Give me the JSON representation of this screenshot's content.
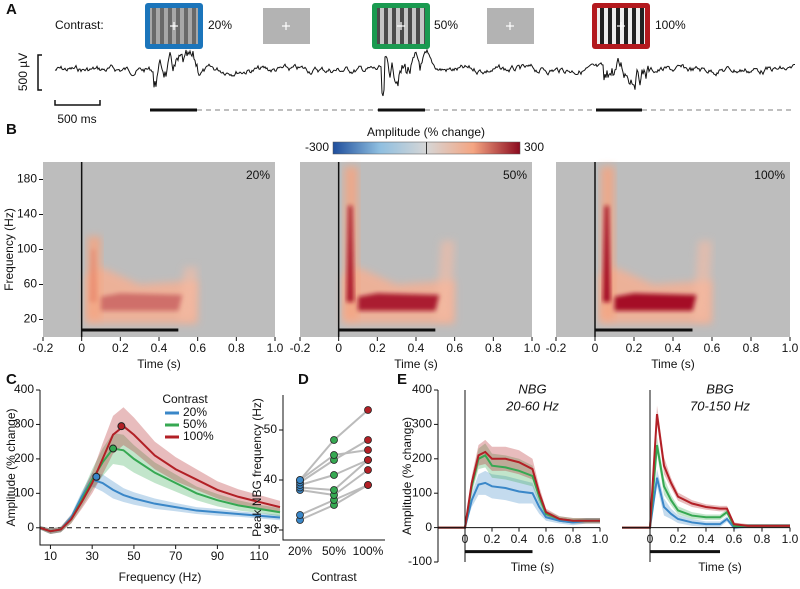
{
  "chart_data": [
    {
      "type": "trace",
      "label": "A",
      "contrast_label": "Contrast:",
      "stimuli": [
        {
          "label": "20%",
          "color": "#1b75bb"
        },
        {
          "label": "50%",
          "color": "#1a9a50"
        },
        {
          "label": "100%",
          "color": "#b3191e"
        }
      ],
      "voltage_scale": "500 µV",
      "time_scale": "500 ms"
    },
    {
      "type": "heatmap",
      "label": "B",
      "colorbar": {
        "title": "Amplitude (% change)",
        "lim": [
          -300,
          300
        ],
        "ticks": [
          -300,
          300
        ]
      },
      "xlabel": "Time (s)",
      "ylabel": "Frequency (Hz)",
      "xlim": [
        -0.2,
        1
      ],
      "xticks": [
        -0.2,
        0,
        0.2,
        0.4,
        0.6,
        0.8,
        {
          "value": 1,
          "label": "1.0"
        }
      ],
      "ylim": [
        0,
        200
      ],
      "yticks": [
        20,
        60,
        100,
        140,
        180
      ],
      "panels": [
        "20%",
        "50%",
        "100%"
      ]
    },
    {
      "type": "line",
      "label": "C",
      "xlabel": "Frequency (Hz)",
      "ylabel": "Amplitude (% change)",
      "xlim": [
        5,
        120
      ],
      "xticks": [
        10,
        30,
        50,
        70,
        90,
        110
      ],
      "ylim": [
        -50,
        400
      ],
      "yticks": [
        0,
        100,
        200,
        300,
        400
      ],
      "legend_title": "Contrast",
      "legend": "upper right",
      "zero_line": "dashed",
      "x": [
        5,
        10,
        15,
        20,
        25,
        30,
        35,
        40,
        45,
        50,
        60,
        70,
        80,
        90,
        100,
        110,
        120
      ],
      "series": [
        {
          "name": "20%",
          "color": "#3a87c8",
          "values": [
            0,
            -10,
            -5,
            30,
            90,
            140,
            130,
            110,
            95,
            85,
            70,
            60,
            50,
            45,
            40,
            35,
            30
          ],
          "error": [
            5,
            8,
            8,
            10,
            15,
            20,
            25,
            25,
            20,
            18,
            15,
            12,
            10,
            10,
            8,
            8,
            8
          ],
          "peak": [
            32,
            148
          ]
        },
        {
          "name": "50%",
          "color": "#36a852",
          "values": [
            0,
            -10,
            -5,
            25,
            80,
            140,
            190,
            230,
            225,
            200,
            160,
            130,
            100,
            80,
            65,
            55,
            45
          ],
          "error": [
            5,
            8,
            8,
            12,
            20,
            30,
            40,
            45,
            45,
            40,
            30,
            25,
            20,
            18,
            15,
            12,
            12
          ],
          "peak": [
            40,
            230
          ]
        },
        {
          "name": "100%",
          "color": "#b22026",
          "values": [
            0,
            -10,
            -5,
            25,
            75,
            130,
            200,
            270,
            295,
            270,
            210,
            170,
            140,
            110,
            90,
            75,
            60
          ],
          "error": [
            5,
            8,
            8,
            12,
            20,
            30,
            45,
            55,
            55,
            50,
            40,
            35,
            30,
            25,
            22,
            20,
            18
          ],
          "peak": [
            44,
            295
          ]
        }
      ]
    },
    {
      "type": "paired",
      "label": "D",
      "xlabel": "Contrast",
      "ylabel": "Peak NBG frequency (Hz)",
      "categories": [
        "20%",
        "50%",
        "100%"
      ],
      "colors": [
        "#3a87c8",
        "#36a852",
        "#b22026"
      ],
      "ylim": [
        28,
        57
      ],
      "yticks": [
        30,
        40,
        50
      ],
      "subjects": [
        [
          32,
          35,
          39
        ],
        [
          33,
          36,
          39
        ],
        [
          38,
          37,
          42
        ],
        [
          38.5,
          38,
          44
        ],
        [
          39,
          41,
          44
        ],
        [
          39.5,
          44,
          48
        ],
        [
          40,
          45,
          46
        ],
        [
          40,
          48,
          54
        ]
      ]
    },
    {
      "type": "timecourse",
      "label": "E",
      "title": "NBG",
      "subtitle": "20-60 Hz",
      "xlabel": "Time (s)",
      "ylabel": "Amplitude (% change)",
      "xlim": [
        -0.2,
        1
      ],
      "xticks": [
        0,
        0.2,
        0.4,
        0.6,
        0.8,
        {
          "value": 1,
          "label": "1.0"
        }
      ],
      "ylim": [
        -100,
        400
      ],
      "yticks": [
        -100,
        0,
        100,
        200,
        300,
        400
      ],
      "x": [
        -0.2,
        -0.1,
        0,
        0.05,
        0.1,
        0.15,
        0.2,
        0.3,
        0.4,
        0.5,
        0.55,
        0.6,
        0.7,
        0.8,
        0.9,
        1.0
      ],
      "series": [
        {
          "name": "20%",
          "color": "#3a87c8",
          "values": [
            0,
            0,
            0,
            80,
            125,
            130,
            120,
            115,
            105,
            100,
            60,
            30,
            20,
            15,
            20,
            20
          ],
          "error": [
            3,
            3,
            3,
            20,
            30,
            35,
            35,
            35,
            35,
            30,
            20,
            10,
            8,
            8,
            8,
            8
          ]
        },
        {
          "name": "50%",
          "color": "#36a852",
          "values": [
            0,
            0,
            0,
            120,
            200,
            210,
            180,
            175,
            165,
            150,
            90,
            40,
            25,
            20,
            20,
            20
          ],
          "error": [
            3,
            3,
            3,
            20,
            30,
            35,
            35,
            35,
            35,
            30,
            20,
            10,
            8,
            8,
            8,
            8
          ]
        },
        {
          "name": "100%",
          "color": "#b22026",
          "values": [
            0,
            0,
            0,
            130,
            210,
            220,
            200,
            200,
            190,
            170,
            100,
            45,
            25,
            20,
            20,
            20
          ],
          "error": [
            3,
            3,
            3,
            20,
            30,
            35,
            35,
            35,
            35,
            30,
            20,
            10,
            8,
            8,
            8,
            8
          ]
        }
      ]
    },
    {
      "type": "timecourse",
      "title": "BBG",
      "subtitle": "70-150 Hz",
      "xlabel": "Time (s)",
      "xlim": [
        -0.2,
        1
      ],
      "xticks": [
        0,
        0.2,
        0.4,
        0.6,
        0.8,
        {
          "value": 1,
          "label": "1.0"
        }
      ],
      "ylim": [
        -100,
        400
      ],
      "x": [
        -0.2,
        -0.1,
        0,
        0.05,
        0.1,
        0.15,
        0.2,
        0.3,
        0.4,
        0.5,
        0.55,
        0.6,
        0.7,
        0.8,
        0.9,
        1.0
      ],
      "series": [
        {
          "name": "20%",
          "color": "#3a87c8",
          "values": [
            0,
            0,
            0,
            145,
            60,
            40,
            25,
            15,
            10,
            10,
            25,
            0,
            5,
            5,
            5,
            5
          ],
          "error": [
            3,
            3,
            3,
            25,
            25,
            15,
            12,
            10,
            8,
            8,
            8,
            5,
            5,
            5,
            5,
            5
          ]
        },
        {
          "name": "50%",
          "color": "#36a852",
          "values": [
            0,
            0,
            0,
            240,
            120,
            80,
            50,
            35,
            30,
            30,
            45,
            5,
            5,
            5,
            5,
            5
          ],
          "error": [
            3,
            3,
            3,
            25,
            25,
            15,
            12,
            10,
            8,
            8,
            8,
            5,
            5,
            5,
            5,
            5
          ]
        },
        {
          "name": "100%",
          "color": "#b22026",
          "values": [
            0,
            0,
            0,
            330,
            180,
            130,
            90,
            70,
            60,
            55,
            55,
            10,
            5,
            5,
            5,
            5
          ],
          "error": [
            3,
            3,
            3,
            25,
            25,
            15,
            12,
            10,
            8,
            8,
            8,
            5,
            5,
            5,
            5,
            5
          ]
        }
      ]
    }
  ]
}
